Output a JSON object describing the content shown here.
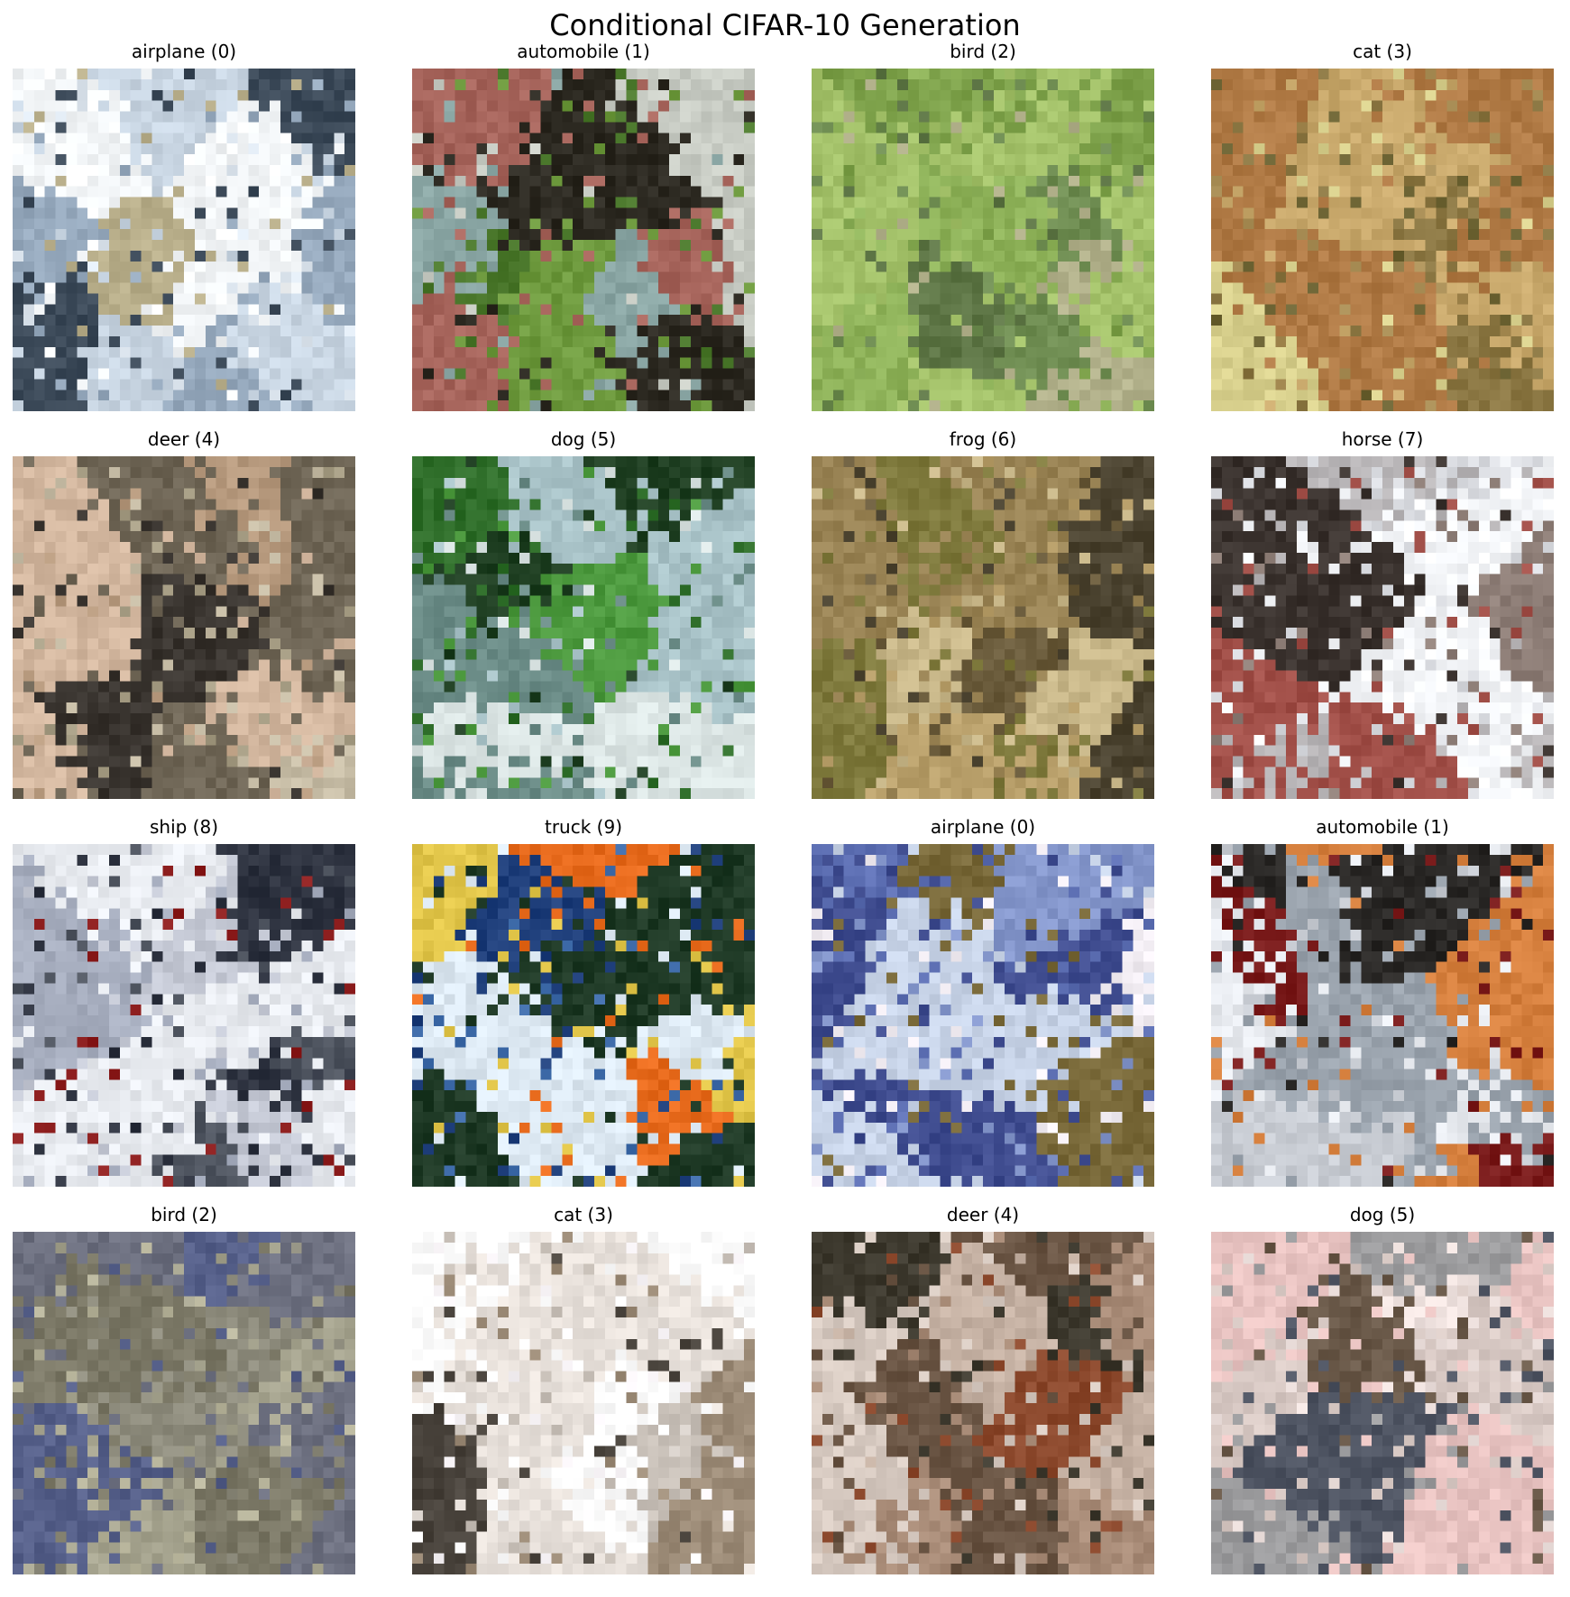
{
  "figure": {
    "title": "Conditional CIFAR-10 Generation"
  },
  "panels": [
    {
      "label": "airplane (0)",
      "palette": [
        "#dfe8f1",
        "#c9d6e3",
        "#f3f6f8",
        "#96a9bd",
        "#3c4a59",
        "#b8ae8a"
      ]
    },
    {
      "label": "automobile (1)",
      "palette": [
        "#4d7a2e",
        "#6f9b3f",
        "#a7655c",
        "#c9cdc5",
        "#2d2a22",
        "#8aa6a4"
      ]
    },
    {
      "label": "bird (2)",
      "palette": [
        "#7ea24b",
        "#8fb35a",
        "#6f8d52",
        "#a4c26a",
        "#5f7747",
        "#b3b28c"
      ]
    },
    {
      "label": "cat (3)",
      "palette": [
        "#8a7642",
        "#a88d55",
        "#6e6535",
        "#c9a96c",
        "#b07a45",
        "#d9d18e"
      ]
    },
    {
      "label": "deer (4)",
      "palette": [
        "#a69d84",
        "#c7bda6",
        "#6f6656",
        "#d4b8a0",
        "#3a3530",
        "#b79a7e"
      ]
    },
    {
      "label": "dog (5)",
      "palette": [
        "#2f6e2a",
        "#4d9a3f",
        "#1f3f22",
        "#a9c3c8",
        "#dbe5e4",
        "#6c8d88"
      ]
    },
    {
      "label": "frog (6)",
      "palette": [
        "#9a8455",
        "#b9a06b",
        "#6b5c3c",
        "#c9b88a",
        "#7f7a3d",
        "#4b4330"
      ]
    },
    {
      "label": "horse (7)",
      "palette": [
        "#f4f6f9",
        "#d9dbe0",
        "#8f7f78",
        "#3b332f",
        "#a25049",
        "#b9b6b8"
      ]
    },
    {
      "label": "ship (8)",
      "palette": [
        "#a7aebf",
        "#c6cad6",
        "#e9ecf1",
        "#8e1f1f",
        "#4f5560",
        "#2e3340"
      ]
    },
    {
      "label": "truck (9)",
      "palette": [
        "#20407c",
        "#3d6aa8",
        "#dde9f3",
        "#e2c64a",
        "#e86b1d",
        "#1f3a26"
      ]
    },
    {
      "label": "airplane (0)",
      "palette": [
        "#5d6fb3",
        "#8597cc",
        "#c8d4e8",
        "#3f4c8f",
        "#7a6a3a",
        "#f3eef4"
      ]
    },
    {
      "label": "automobile (1)",
      "palette": [
        "#e8ebf0",
        "#c9cdd4",
        "#7a1b1b",
        "#d6803e",
        "#2a2826",
        "#9aa3ad"
      ]
    },
    {
      "label": "bird (2)",
      "palette": [
        "#8e8c7d",
        "#a6a48f",
        "#6d7080",
        "#b8b59c",
        "#56608a",
        "#7b7866"
      ]
    },
    {
      "label": "cat (3)",
      "palette": [
        "#fbf7fa",
        "#ffffff",
        "#c8c0b8",
        "#4a443d",
        "#9d8c78",
        "#e9e2dc"
      ]
    },
    {
      "label": "deer (4)",
      "palette": [
        "#c6b2a4",
        "#a98c78",
        "#6a5544",
        "#3e3a2f",
        "#8d4a2e",
        "#d8cbc2"
      ]
    },
    {
      "label": "dog (5)",
      "palette": [
        "#d8c9c4",
        "#9d9d9f",
        "#4f5563",
        "#efe2df",
        "#6b5a4a",
        "#e9c4c2"
      ]
    }
  ]
}
